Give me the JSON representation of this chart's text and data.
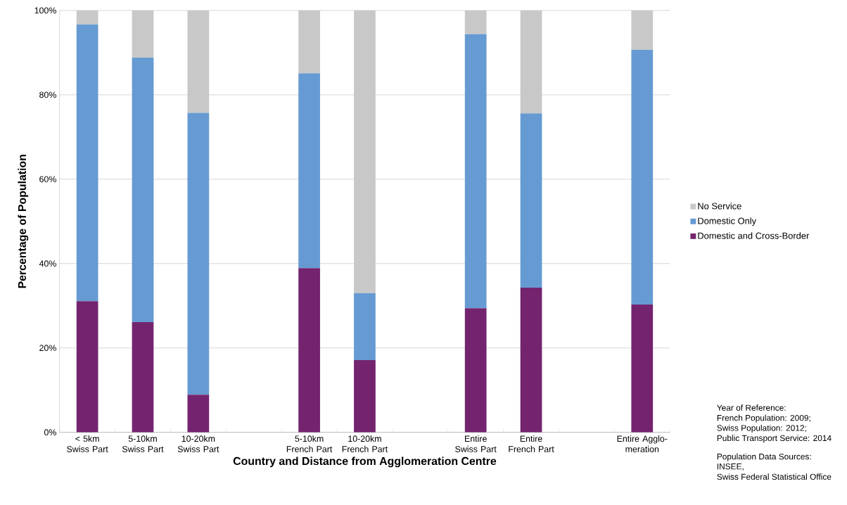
{
  "chart_data": {
    "type": "bar",
    "stacked": true,
    "xlabel": "Country and Distance from Agglomeration Centre",
    "ylabel": "Percentage of Population",
    "categories": [
      "< 5km Swiss Part",
      "5-10km Swiss Part",
      "10-20km Swiss Part",
      null,
      "5-10km French Part",
      "10-20km French Part",
      null,
      "Entire Swiss Part",
      "Entire French Part",
      null,
      "Entire Agglo- meration"
    ],
    "series": [
      {
        "name": "Domestic and Cross-Border",
        "color": "#74246f",
        "values": [
          31.1,
          26.1,
          8.9,
          null,
          38.9,
          17.1,
          null,
          29.4,
          34.3,
          null,
          30.3
        ]
      },
      {
        "name": "Domestic Only",
        "color": "#669ad2",
        "values": [
          65.6,
          62.7,
          66.8,
          null,
          46.2,
          15.9,
          null,
          65.0,
          41.3,
          null,
          60.4
        ]
      },
      {
        "name": "No Service",
        "color": "#c8c8c8",
        "values": [
          3.3,
          11.2,
          24.3,
          null,
          14.9,
          67.0,
          null,
          5.6,
          24.4,
          null,
          9.3
        ]
      }
    ],
    "ylim": [
      0,
      100
    ],
    "yticks": [
      {
        "value": 0,
        "label": "0%"
      },
      {
        "value": 20,
        "label": "20%"
      },
      {
        "value": 40,
        "label": "40%"
      },
      {
        "value": 60,
        "label": "60%"
      },
      {
        "value": 80,
        "label": "80%"
      },
      {
        "value": 100,
        "label": "100%"
      }
    ],
    "grid": "y",
    "legend": "right",
    "annotations": [
      "Year of Reference:",
      "French Population: 2009;",
      "Swiss Population: 2012;",
      "Public Transport Service: 2014",
      "Population Data Sources:",
      "INSEE,",
      "Swiss Federal Statistical Office"
    ]
  }
}
